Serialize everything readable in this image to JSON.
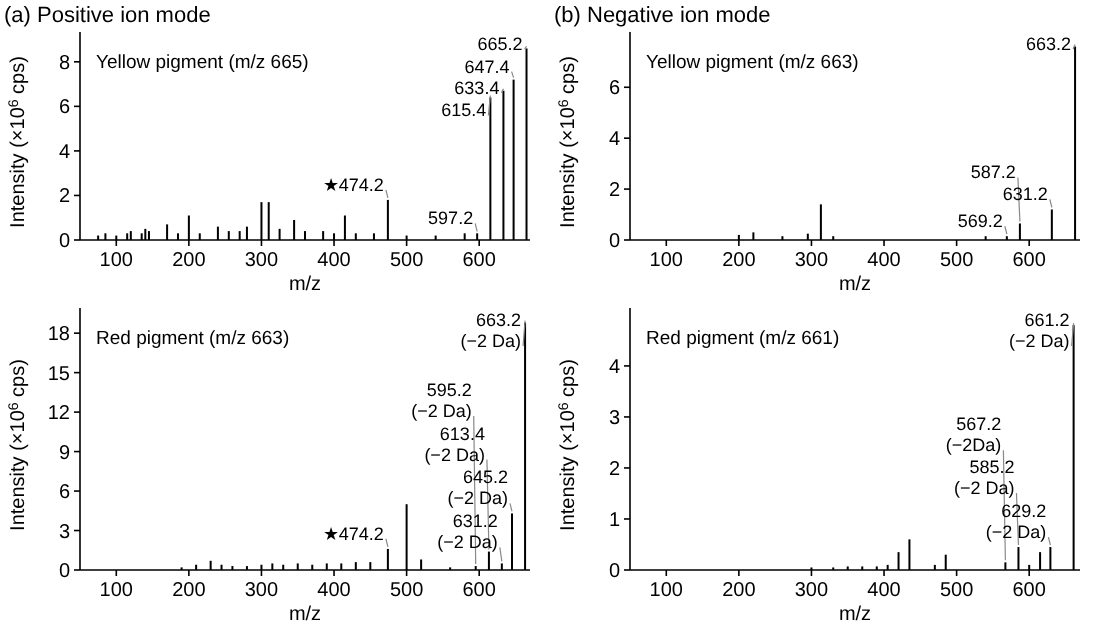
{
  "chart_data": [
    {
      "type": "bar",
      "title": "(a) Positive ion mode",
      "subtitle": "Yellow pigment (m/z 665)",
      "xlabel": "m/z",
      "ylabel": "Intensity (×10$^{6}$ cps)",
      "xlim": [
        50,
        670
      ],
      "xticks": [
        100,
        200,
        300,
        400,
        500,
        600
      ],
      "ylim": [
        0,
        8.8
      ],
      "yticks": [
        0,
        2,
        4,
        6,
        8
      ],
      "series": [
        {
          "color": "#000000",
          "x": [
            75,
            85,
            100,
            115,
            120,
            135,
            140,
            145,
            170,
            185,
            200,
            215,
            240,
            255,
            270,
            280,
            300,
            310,
            325,
            345,
            360,
            385,
            400,
            415,
            430,
            455,
            474.2,
            500,
            540,
            580,
            597.2,
            615.4,
            633.4,
            647.4,
            665.2
          ],
          "values": [
            0.2,
            0.3,
            0.2,
            0.3,
            0.4,
            0.3,
            0.5,
            0.4,
            0.7,
            0.3,
            1.1,
            0.3,
            0.6,
            0.4,
            0.4,
            0.6,
            1.7,
            1.7,
            0.5,
            0.9,
            0.4,
            0.4,
            0.3,
            1.1,
            0.3,
            0.3,
            1.8,
            0.2,
            0.2,
            0.3,
            0.3,
            6.4,
            6.7,
            7.2,
            8.6
          ]
        }
      ],
      "annotations": [
        {
          "text": "665.2",
          "x": 665.2,
          "y": 8.6
        },
        {
          "text": "647.4",
          "x": 647.4,
          "y": 7.2
        },
        {
          "text": "633.4",
          "x": 633.4,
          "y": 6.7
        },
        {
          "text": "615.4",
          "x": 615.4,
          "y": 6.4
        },
        {
          "text": "597.2",
          "x": 597.2,
          "y": 0.3
        },
        {
          "text": "★474.2",
          "x": 474.2,
          "y": 1.8
        }
      ]
    },
    {
      "type": "bar",
      "title": "(b) Negative ion mode",
      "subtitle": "Yellow pigment (m/z 663)",
      "xlabel": "m/z",
      "ylabel": "Intensity (×10$^{6}$ cps)",
      "xlim": [
        50,
        670
      ],
      "xticks": [
        100,
        200,
        300,
        400,
        500,
        600
      ],
      "ylim": [
        0,
        7.7
      ],
      "yticks": [
        0,
        2,
        4,
        6
      ],
      "series": [
        {
          "color": "#000000",
          "x": [
            200,
            220,
            260,
            295,
            313,
            330,
            540,
            569.2,
            587.2,
            631.2,
            663.2
          ],
          "values": [
            0.2,
            0.3,
            0.15,
            0.25,
            1.4,
            0.15,
            0.15,
            0.15,
            0.65,
            1.2,
            7.6
          ]
        }
      ],
      "annotations": [
        {
          "text": "663.2",
          "x": 663.2,
          "y": 7.6
        },
        {
          "text": "631.2",
          "x": 631.2,
          "y": 1.2
        },
        {
          "text": "587.2",
          "x": 587.2,
          "y": 0.65
        },
        {
          "text": "569.2",
          "x": 569.2,
          "y": 0.15
        }
      ]
    },
    {
      "type": "bar",
      "subtitle": "Red pigment (m/z 663)",
      "xlabel": "m/z",
      "ylabel": "Intensity (×10$^{6}$ cps)",
      "xlim": [
        50,
        670
      ],
      "xticks": [
        100,
        200,
        300,
        400,
        500,
        600
      ],
      "ylim": [
        0,
        19
      ],
      "yticks": [
        0,
        3,
        6,
        9,
        12,
        15,
        18
      ],
      "series": [
        {
          "color": "#000000",
          "x": [
            190,
            210,
            230,
            245,
            260,
            280,
            300,
            315,
            330,
            350,
            370,
            390,
            410,
            430,
            450,
            474.2,
            500,
            520,
            560,
            595.2,
            613.4,
            631.2,
            645.2,
            663.2
          ],
          "values": [
            0.2,
            0.4,
            0.7,
            0.4,
            0.3,
            0.3,
            0.4,
            0.5,
            0.4,
            0.5,
            0.4,
            0.5,
            0.5,
            0.6,
            0.6,
            1.6,
            5.0,
            0.8,
            0.2,
            0.3,
            1.4,
            0.5,
            4.3,
            18.8
          ]
        }
      ],
      "annotations": [
        {
          "text": "663.2\n(−2 Da)",
          "x": 663.2,
          "y": 18.8
        },
        {
          "text": "645.2\n(−2 Da)",
          "x": 645.2,
          "y": 4.3
        },
        {
          "text": "631.2\n(−2 Da)",
          "x": 631.2,
          "y": 0.5
        },
        {
          "text": "613.4\n(−2 Da)",
          "x": 613.4,
          "y": 1.4
        },
        {
          "text": "595.2\n(−2 Da)",
          "x": 595.2,
          "y": 0.3
        },
        {
          "text": "★474.2",
          "x": 474.2,
          "y": 1.6
        }
      ]
    },
    {
      "type": "bar",
      "subtitle": "Red pigment (m/z 661)",
      "xlabel": "m/z",
      "ylabel": "Intensity (×10$^{6}$ cps)",
      "xlim": [
        50,
        670
      ],
      "xticks": [
        100,
        200,
        300,
        400,
        500,
        600
      ],
      "ylim": [
        0,
        4.9
      ],
      "yticks": [
        0,
        1,
        2,
        3,
        4
      ],
      "series": [
        {
          "color": "#000000",
          "x": [
            300,
            330,
            350,
            370,
            390,
            405,
            420,
            435,
            470,
            485,
            567.2,
            585.2,
            600,
            615,
            629.2,
            661.2
          ],
          "values": [
            0.05,
            0.05,
            0.07,
            0.07,
            0.07,
            0.1,
            0.35,
            0.6,
            0.1,
            0.3,
            0.15,
            0.45,
            0.1,
            0.35,
            0.45,
            4.8
          ]
        }
      ],
      "annotations": [
        {
          "text": "661.2\n(−2 Da)",
          "x": 661.2,
          "y": 4.8
        },
        {
          "text": "629.2\n(−2 Da)",
          "x": 629.2,
          "y": 0.45
        },
        {
          "text": "585.2\n(−2 Da)",
          "x": 585.2,
          "y": 0.45
        },
        {
          "text": "567.2\n(−2Da)",
          "x": 567.2,
          "y": 0.15
        }
      ]
    }
  ]
}
